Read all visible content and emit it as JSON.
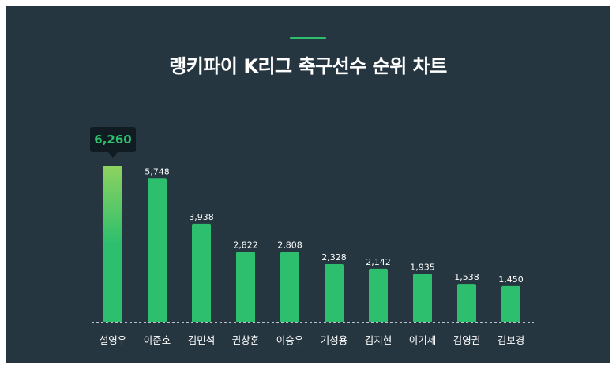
{
  "page": {
    "title": "랭키파이 K리그 축구선수 순위 차트"
  },
  "colors": {
    "background": "#263640",
    "bar": "#2dbf6e",
    "bar_top_highlight": "#8ed25f",
    "tooltip_bg": "#101b22",
    "tooltip_text": "#2dbf6e",
    "text": "#ffffff"
  },
  "chart_data": {
    "type": "bar",
    "title": "랭키파이 K리그 축구선수 순위 차트",
    "xlabel": "",
    "ylabel": "",
    "categories": [
      "설영우",
      "이준호",
      "김민석",
      "권창훈",
      "이승우",
      "기성용",
      "김지현",
      "이기제",
      "김영권",
      "김보경"
    ],
    "values": [
      6260,
      5748,
      3938,
      2822,
      2808,
      2328,
      2142,
      1935,
      1538,
      1450
    ],
    "value_labels": [
      "6,260",
      "5,748",
      "3,938",
      "2,822",
      "2,808",
      "2,328",
      "2,142",
      "1,935",
      "1,538",
      "1,450"
    ],
    "ylim": [
      0,
      6260
    ],
    "grid": false,
    "legend": "none",
    "highlight": {
      "index": 0,
      "label": "6,260"
    }
  }
}
